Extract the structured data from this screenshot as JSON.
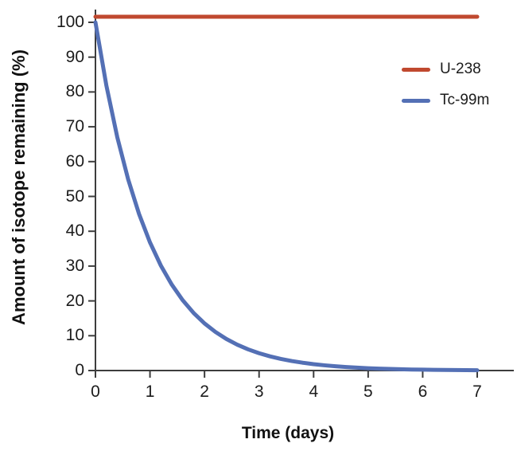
{
  "chart_data": {
    "type": "line",
    "title": "",
    "xlabel": "Time (days)",
    "ylabel": "Amount of isotope remaining (%)",
    "xlim": [
      0,
      7
    ],
    "ylim": [
      0,
      100
    ],
    "xticks": [
      0,
      1,
      2,
      3,
      4,
      5,
      6,
      7
    ],
    "yticks": [
      0,
      10,
      20,
      30,
      40,
      50,
      60,
      70,
      80,
      90,
      100
    ],
    "grid": false,
    "legend_position": "upper right",
    "axis_color": "#3d3d3d",
    "text_color": "#1c1c1c",
    "series": [
      {
        "name": "U-238",
        "color": "#c0492f",
        "x": [
          0,
          7
        ],
        "values": [
          100,
          100
        ]
      },
      {
        "name": "Tc-99m",
        "color": "#5470b5",
        "x": [
          0,
          0.2,
          0.4,
          0.6,
          0.8,
          1.0,
          1.2,
          1.4,
          1.6,
          1.8,
          2.0,
          2.2,
          2.4,
          2.6,
          2.8,
          3.0,
          3.2,
          3.4,
          3.6,
          3.8,
          4.0,
          4.2,
          4.4,
          4.6,
          4.8,
          5.0,
          5.2,
          5.4,
          5.6,
          5.8,
          6.0,
          6.2,
          6.4,
          6.6,
          6.8,
          7.0
        ],
        "values": [
          100,
          81.87,
          67.03,
          54.88,
          44.93,
          36.79,
          30.12,
          24.66,
          20.19,
          16.53,
          13.53,
          11.08,
          9.07,
          7.43,
          6.08,
          4.98,
          4.08,
          3.34,
          2.73,
          2.24,
          1.83,
          1.5,
          1.23,
          1.01,
          0.82,
          0.67,
          0.55,
          0.45,
          0.37,
          0.3,
          0.25,
          0.2,
          0.17,
          0.14,
          0.11,
          0.09
        ]
      }
    ]
  }
}
